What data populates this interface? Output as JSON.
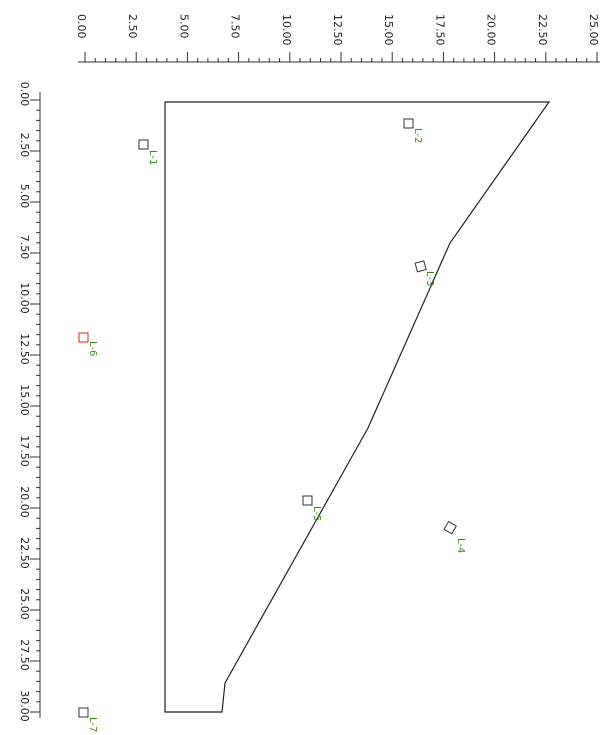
{
  "top_ruler": {
    "ticks": [
      {
        "value": 0,
        "label": "0.00"
      },
      {
        "value": 2.5,
        "label": "2.50"
      },
      {
        "value": 5,
        "label": "5.00"
      },
      {
        "value": 7.5,
        "label": "7.50"
      },
      {
        "value": 10,
        "label": "10.00"
      },
      {
        "value": 12.5,
        "label": "12.50"
      },
      {
        "value": 15,
        "label": "15.00"
      },
      {
        "value": 17.5,
        "label": "17.50"
      },
      {
        "value": 20,
        "label": "20.00"
      },
      {
        "value": 22.5,
        "label": "22.50"
      },
      {
        "value": 25,
        "label": "25.00"
      }
    ]
  },
  "left_ruler": {
    "ticks": [
      {
        "value": 0,
        "label": "0.00"
      },
      {
        "value": 2.5,
        "label": "2.50"
      },
      {
        "value": 5,
        "label": "5.00"
      },
      {
        "value": 7.5,
        "label": "7.50"
      },
      {
        "value": 10,
        "label": "10.00"
      },
      {
        "value": 12.5,
        "label": "12.50"
      },
      {
        "value": 15,
        "label": "15.00"
      },
      {
        "value": 17.5,
        "label": "17.50"
      },
      {
        "value": 20,
        "label": "20.00"
      },
      {
        "value": 22.5,
        "label": "22.50"
      },
      {
        "value": 25,
        "label": "25.00"
      },
      {
        "value": 27.5,
        "label": "27.50"
      },
      {
        "value": 30,
        "label": "30.00"
      }
    ]
  },
  "markers": [
    {
      "label": "L-1"
    },
    {
      "label": "L-2"
    },
    {
      "label": "L-3"
    },
    {
      "label": "L-4"
    },
    {
      "label": "L-5"
    },
    {
      "label": "L-6"
    },
    {
      "label": "L-7"
    }
  ]
}
